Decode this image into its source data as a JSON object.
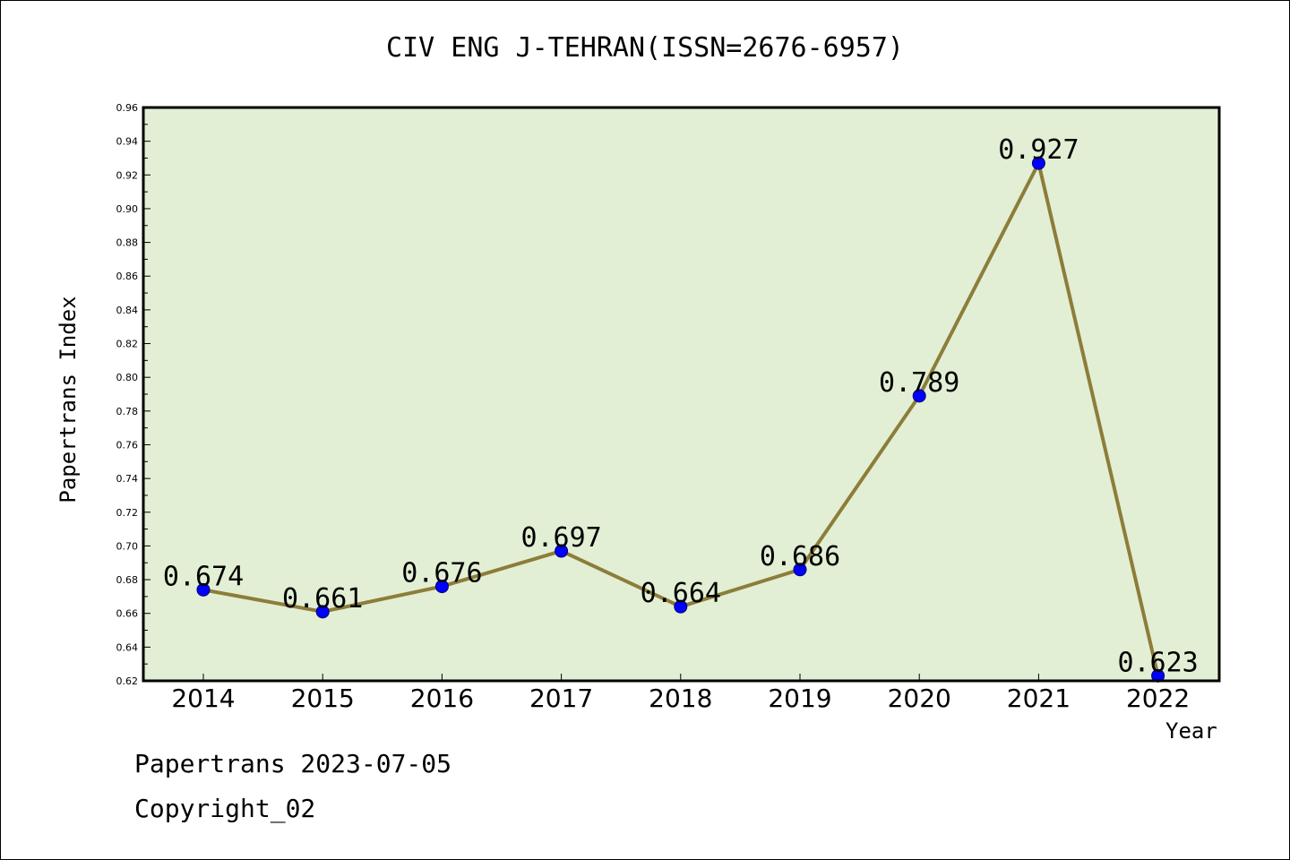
{
  "title": "CIV ENG J-TEHRAN(ISSN=2676-6957)",
  "footer": {
    "line1": "Papertrans 2023-07-05",
    "line2": "Copyright_02"
  },
  "colors": {
    "plot_background": "#e2efd4",
    "line": "#8c7d3a",
    "marker": "#0000ff"
  },
  "chart_data": {
    "type": "line",
    "title": "CIV ENG J-TEHRAN(ISSN=2676-6957)",
    "xlabel": "Year",
    "ylabel": "Papertrans Index",
    "categories": [
      "2014",
      "2015",
      "2016",
      "2017",
      "2018",
      "2019",
      "2020",
      "2021",
      "2022"
    ],
    "series": [
      {
        "values": [
          0.674,
          0.661,
          0.676,
          0.697,
          0.664,
          0.686,
          0.789,
          0.927,
          0.623
        ],
        "labels": [
          "0.674",
          "0.661",
          "0.676",
          "0.697",
          "0.664",
          "0.686",
          "0.789",
          "0.927",
          "0.623"
        ]
      }
    ],
    "ylim": [
      0.62,
      0.96
    ],
    "yticks": [
      "0.62",
      "0.64",
      "0.66",
      "0.68",
      "0.70",
      "0.72",
      "0.74",
      "0.76",
      "0.78",
      "0.80",
      "0.82",
      "0.84",
      "0.86",
      "0.88",
      "0.90",
      "0.92",
      "0.94",
      "0.96"
    ],
    "grid": false,
    "legend": "none"
  }
}
